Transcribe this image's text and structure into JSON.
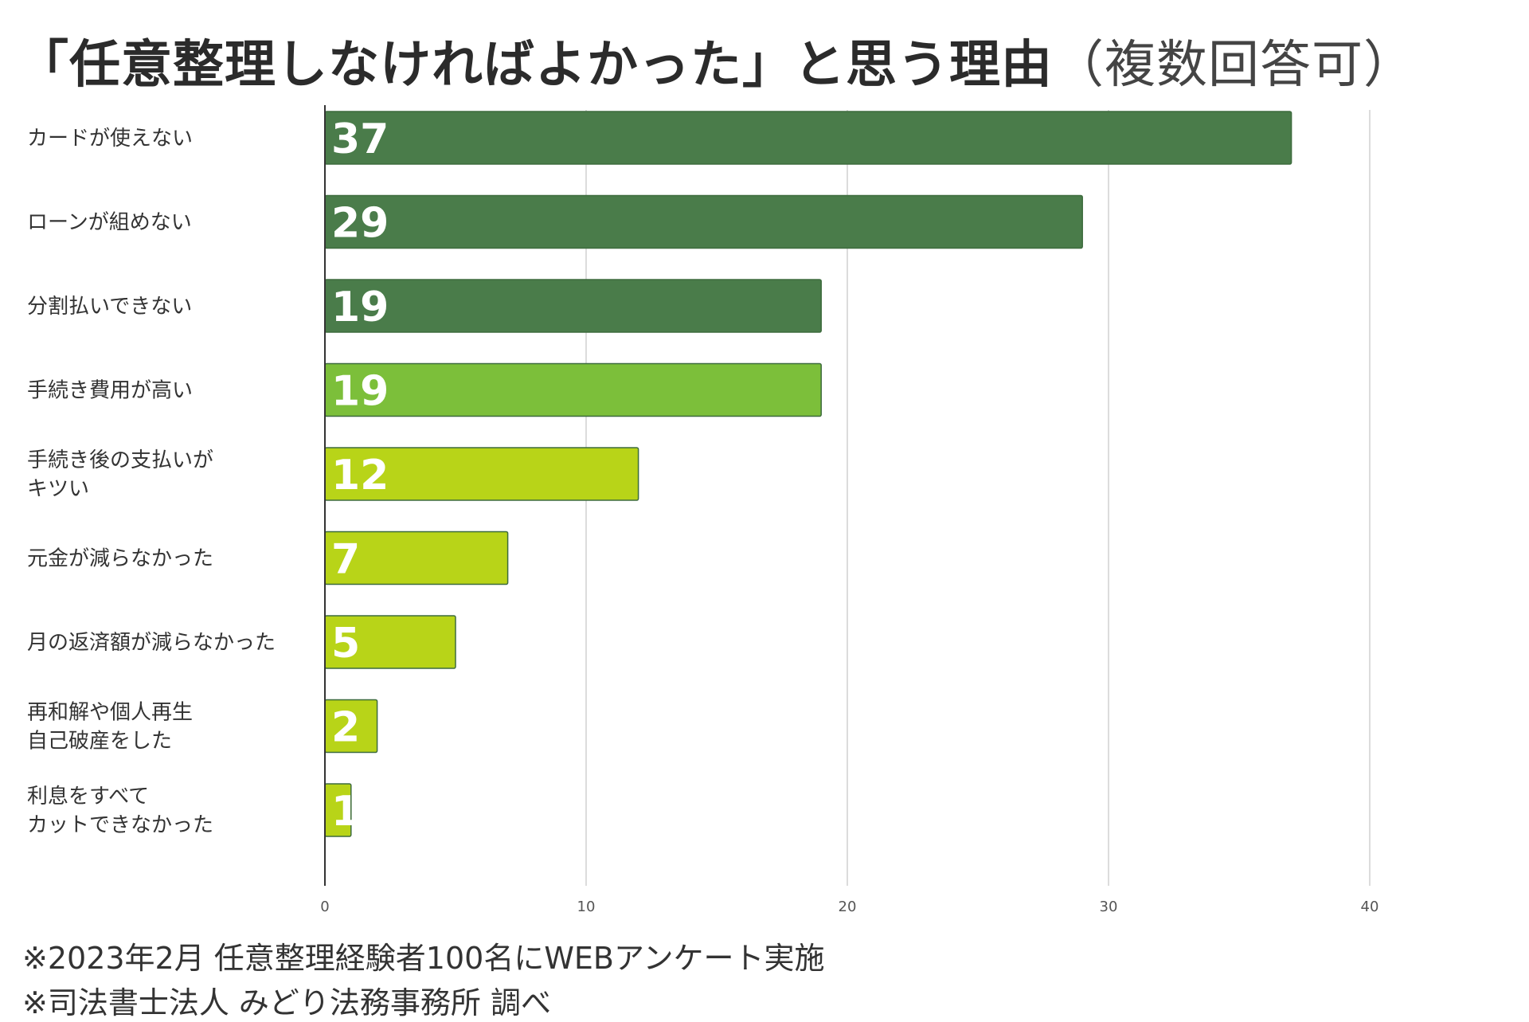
{
  "title": {
    "main": "「任意整理しなければよかった」と思う理由",
    "sub": "（複数回答可）"
  },
  "chart_data": {
    "type": "bar",
    "orientation": "horizontal",
    "title": "「任意整理しなければよかった」と思う理由（複数回答可）",
    "categories": [
      [
        "カードが使えない"
      ],
      [
        "ローンが組めない"
      ],
      [
        "分割払いできない"
      ],
      [
        "手続き費用が高い"
      ],
      [
        "手続き後の支払いが",
        "キツい"
      ],
      [
        "元金が減らなかった"
      ],
      [
        "月の返済額が減らなかった"
      ],
      [
        "再和解や個人再生",
        "自己破産をした"
      ],
      [
        "利息をすべて",
        "カットできなかった"
      ]
    ],
    "values": [
      37,
      29,
      19,
      19,
      12,
      7,
      5,
      2,
      1
    ],
    "value_labels": [
      "37",
      "29",
      "19",
      "19",
      "12",
      "7",
      "5",
      "2",
      "1"
    ],
    "bar_colors": [
      "#4a7c4a",
      "#4a7c4a",
      "#4a7c4a",
      "#7cbf3a",
      "#b8d418",
      "#b8d418",
      "#b8d418",
      "#b8d418",
      "#b8d418"
    ],
    "xlim": [
      0,
      40
    ],
    "xticks": [
      0,
      10,
      20,
      30,
      40
    ],
    "xtick_labels": [
      "0",
      "10",
      "20",
      "30",
      "40"
    ],
    "grid": true,
    "legend": "none"
  },
  "notes": [
    "※2023年2月 任意整理経験者100名にWEBアンケート実施",
    "※司法書士法人 みどり法務事務所 調べ"
  ],
  "colors": {
    "grid": "#d0d0d0",
    "axis": "#333333",
    "bar_stroke": "#3d6b3d"
  }
}
